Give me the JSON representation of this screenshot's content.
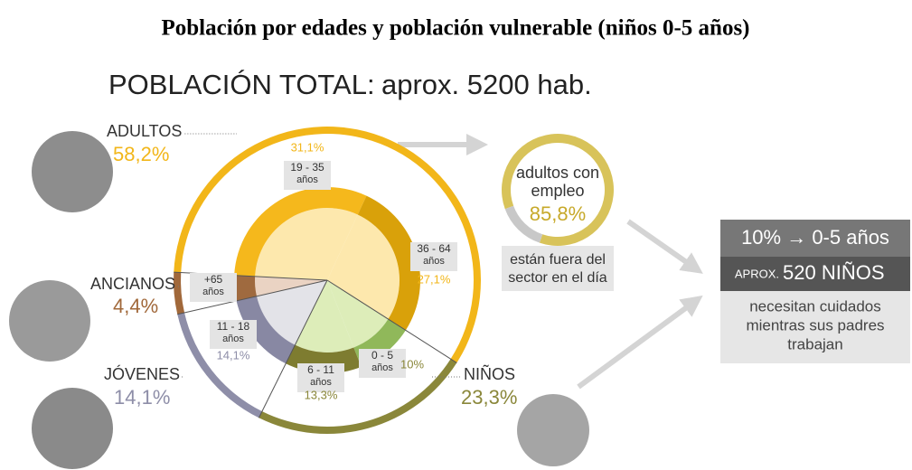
{
  "title": "Población por edades y población vulnerable (niños 0-5 años)",
  "subtitle": {
    "label": "POBLACIÓN TOTAL:",
    "value": "aprox. 5200 hab."
  },
  "chart_data": {
    "type": "sunburst",
    "groups": [
      {
        "name": "ADULTOS",
        "value": 58.2,
        "value_label": "58,2%",
        "color": "#f2b619",
        "segments": [
          {
            "label_lines": [
              "19 - 35",
              "años"
            ],
            "value": 31.1,
            "value_label": "31,1%",
            "color": "#f5b81c",
            "pale": "#fde8ad"
          },
          {
            "label_lines": [
              "36 - 64",
              "años"
            ],
            "value": 27.1,
            "value_label": "27,1%",
            "color": "#d9a10a",
            "pale": "#fde8ad"
          }
        ]
      },
      {
        "name": "NIÑOS",
        "value": 23.3,
        "value_label": "23,3%",
        "color": "#8a873a",
        "segments": [
          {
            "label_lines": [
              "0 - 5",
              "años"
            ],
            "value": 10,
            "value_label": "10%",
            "color": "#90b85a",
            "pale": "#ddedb9"
          },
          {
            "label_lines": [
              "6 - 11",
              "años"
            ],
            "value": 13.3,
            "value_label": "13,3%",
            "color": "#7e7c30",
            "pale": "#ddedb9"
          }
        ]
      },
      {
        "name": "JÓVENES",
        "value": 14.1,
        "value_label": "14,1%",
        "color": "#8e8ea8",
        "segments": [
          {
            "label_lines": [
              "11 - 18",
              "años"
            ],
            "value": 14.1,
            "value_label": "14,1%",
            "color": "#8888a3",
            "pale": "#e3e3e8"
          }
        ]
      },
      {
        "name": "ANCIANOS",
        "value": 4.4,
        "value_label": "4,4%",
        "color": "#a1683a",
        "segments": [
          {
            "label_lines": [
              "+65",
              "años"
            ],
            "value": 4.4,
            "color": "#9f6a3f",
            "pale": "#ead3c3"
          }
        ]
      }
    ]
  },
  "employment": {
    "label_lines": [
      "adultos con",
      "empleo"
    ],
    "value": 85.8,
    "value_label": "85,8%",
    "color": "#d8c35a",
    "rest_color": "#c8c8c8",
    "note_lines": [
      "están fuera del",
      "sector en el día"
    ]
  },
  "box": {
    "line1": "10% → 0-5 años",
    "prefix": "APROX.",
    "count": "520 NIÑOS",
    "note_lines": [
      "necesitan cuidados",
      "mientras sus padres",
      "trabajan"
    ]
  }
}
